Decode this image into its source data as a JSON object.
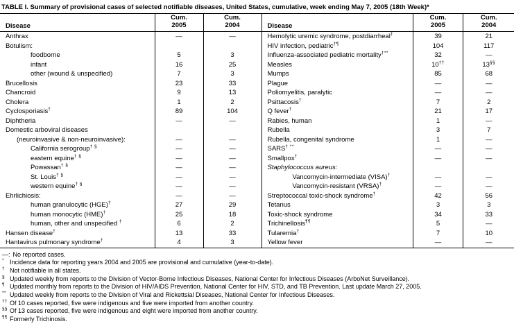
{
  "title": "TABLE I. Summary of provisional cases of selected notifiable diseases, United States, cumulative, week ending May 7, 2005 (18th Week)*",
  "header": {
    "disease": "Disease",
    "cum": "Cum.",
    "y2005": "2005",
    "y2004": "2004"
  },
  "no_cases_symbol": "—",
  "left_table": {
    "rows": [
      {
        "label": "Anthrax",
        "indent": 0,
        "c2005": "—",
        "c2004": "—"
      },
      {
        "label": "Botulism:",
        "indent": 0,
        "c2005": "",
        "c2004": ""
      },
      {
        "label": "foodborne",
        "indent": 2,
        "c2005": "5",
        "c2004": "3"
      },
      {
        "label": "infant",
        "indent": 2,
        "c2005": "16",
        "c2004": "25"
      },
      {
        "label": "other (wound & unspecified)",
        "indent": 2,
        "c2005": "7",
        "c2004": "3"
      },
      {
        "label": "Brucellosis",
        "indent": 0,
        "c2005": "23",
        "c2004": "33"
      },
      {
        "label": "Chancroid",
        "indent": 0,
        "c2005": "9",
        "c2004": "13"
      },
      {
        "label": "Cholera",
        "indent": 0,
        "c2005": "1",
        "c2004": "2"
      },
      {
        "label": "Cyclosporiasis",
        "sup": "†",
        "indent": 0,
        "c2005": "89",
        "c2004": "104"
      },
      {
        "label": "Diphtheria",
        "indent": 0,
        "c2005": "—",
        "c2004": "—"
      },
      {
        "label": "Domestic arboviral diseases",
        "indent": 0,
        "c2005": "",
        "c2004": ""
      },
      {
        "label": "(neuroinvasive & non-neuroinvasive):",
        "indent": 1,
        "c2005": "—",
        "c2004": "—"
      },
      {
        "label": "California serogroup",
        "sup": "† §",
        "indent": 2,
        "c2005": "—",
        "c2004": "—"
      },
      {
        "label": "eastern equine",
        "sup": "† §",
        "indent": 2,
        "c2005": "—",
        "c2004": "—"
      },
      {
        "label": "Powassan",
        "sup": "† §",
        "indent": 2,
        "c2005": "—",
        "c2004": "—"
      },
      {
        "label": "St. Louis",
        "sup": "† §",
        "indent": 2,
        "c2005": "—",
        "c2004": "—"
      },
      {
        "label": "western equine",
        "sup": "† §",
        "indent": 2,
        "c2005": "—",
        "c2004": "—"
      },
      {
        "label": "Ehrlichiosis:",
        "indent": 0,
        "c2005": "—",
        "c2004": "—"
      },
      {
        "label": "human granulocytic (HGE)",
        "sup": "†",
        "indent": 2,
        "c2005": "27",
        "c2004": "29"
      },
      {
        "label": "human monocytic (HME)",
        "sup": "†",
        "indent": 2,
        "c2005": "25",
        "c2004": "18"
      },
      {
        "label": "human, other and unspecified ",
        "sup": "†",
        "indent": 2,
        "c2005": "6",
        "c2004": "2"
      },
      {
        "label": "Hansen disease",
        "sup": "†",
        "indent": 0,
        "c2005": "13",
        "c2004": "33"
      },
      {
        "label": "Hantavirus pulmonary syndrome",
        "sup": "†",
        "indent": 0,
        "c2005": "4",
        "c2004": "3"
      }
    ]
  },
  "right_table": {
    "rows": [
      {
        "label": "Hemolytic uremic syndrome, postdiarrheal",
        "sup": "†",
        "indent": 0,
        "c2005": "39",
        "c2004": "21"
      },
      {
        "label": "HIV infection, pediatric",
        "sup": "†¶",
        "indent": 0,
        "c2005": "104",
        "c2004": "117"
      },
      {
        "label": "Influenza-associated pediatric mortality",
        "sup": "†**",
        "indent": 0,
        "c2005": "32",
        "c2004": "—"
      },
      {
        "label": "Measles",
        "indent": 0,
        "c2005": "10",
        "c2005_sup": "††",
        "c2004": "13",
        "c2004_sup": "§§"
      },
      {
        "label": "Mumps",
        "indent": 0,
        "c2005": "85",
        "c2004": "68"
      },
      {
        "label": "Plague",
        "indent": 0,
        "c2005": "—",
        "c2004": "—"
      },
      {
        "label": "Poliomyelitis, paralytic",
        "indent": 0,
        "c2005": "—",
        "c2004": "—"
      },
      {
        "label": "Psittacosis",
        "sup": "†",
        "indent": 0,
        "c2005": "7",
        "c2004": "2"
      },
      {
        "label": "Q fever",
        "sup": "†",
        "indent": 0,
        "c2005": "21",
        "c2004": "17"
      },
      {
        "label": "Rabies, human",
        "indent": 0,
        "c2005": "1",
        "c2004": "—"
      },
      {
        "label": "Rubella",
        "indent": 0,
        "c2005": "3",
        "c2004": "7"
      },
      {
        "label": "Rubella, congenital syndrome",
        "indent": 0,
        "c2005": "1",
        "c2004": "—"
      },
      {
        "label": "SARS",
        "sup": "† **",
        "indent": 0,
        "c2005": "—",
        "c2004": "—"
      },
      {
        "label": "Smallpox",
        "sup": "†",
        "indent": 0,
        "c2005": "—",
        "c2004": "—"
      },
      {
        "label": "Staphylococcus aureus:",
        "italic": true,
        "indent": 0,
        "c2005": "",
        "c2004": ""
      },
      {
        "label": "Vancomycin-intermediate (VISA)",
        "sup": "†",
        "indent": 2,
        "c2005": "—",
        "c2004": "—"
      },
      {
        "label": "Vancomycin-resistant (VRSA)",
        "sup": "†",
        "indent": 2,
        "c2005": "—",
        "c2004": "—"
      },
      {
        "label": "Streptococcal toxic-shock syndrome",
        "sup": "†",
        "indent": 0,
        "c2005": "42",
        "c2004": "56"
      },
      {
        "label": "Tetanus",
        "indent": 0,
        "c2005": "3",
        "c2004": "3"
      },
      {
        "label": "Toxic-shock syndrome",
        "indent": 0,
        "c2005": "34",
        "c2004": "33"
      },
      {
        "label": "Trichinellosis",
        "sup": "¶¶",
        "indent": 0,
        "c2005": "5",
        "c2004": "—"
      },
      {
        "label": "Tularemia",
        "sup": "†",
        "indent": 0,
        "c2005": "7",
        "c2004": "10"
      },
      {
        "label": "Yellow fever",
        "indent": 0,
        "c2005": "—",
        "c2004": "—"
      }
    ]
  },
  "footnotes": [
    {
      "marker": "—:",
      "superscript": false,
      "text": "No reported cases."
    },
    {
      "marker": "*",
      "superscript": true,
      "text": "Incidence data for reporting years 2004 and 2005 are provisional and cumulative (year-to-date)."
    },
    {
      "marker": "†",
      "superscript": true,
      "text": "Not notifiable in all states."
    },
    {
      "marker": "§",
      "superscript": true,
      "text": "Updated weekly from reports to the Division of Vector-Borne Infectious Diseases, National Center for Infectious Diseases (ArboNet Surveillance)."
    },
    {
      "marker": "¶",
      "superscript": true,
      "text": "Updated monthly from reports to the Division of HIV/AIDS Prevention, National Center for HIV, STD, and TB Prevention. Last update March 27, 2005."
    },
    {
      "marker": "**",
      "superscript": true,
      "text": "Updated weekly from reports to the Division of Viral and Rickettsial Diseases, National Center for Infectious Diseases."
    },
    {
      "marker": "††",
      "superscript": true,
      "text": "Of 10 cases reported, five were indigenous and five were imported from another country."
    },
    {
      "marker": "§§",
      "superscript": true,
      "text": "Of 13 cases reported, five were indigenous and eight were imported from another country."
    },
    {
      "marker": "¶¶",
      "superscript": true,
      "text": "Formerly Trichinosis."
    }
  ]
}
